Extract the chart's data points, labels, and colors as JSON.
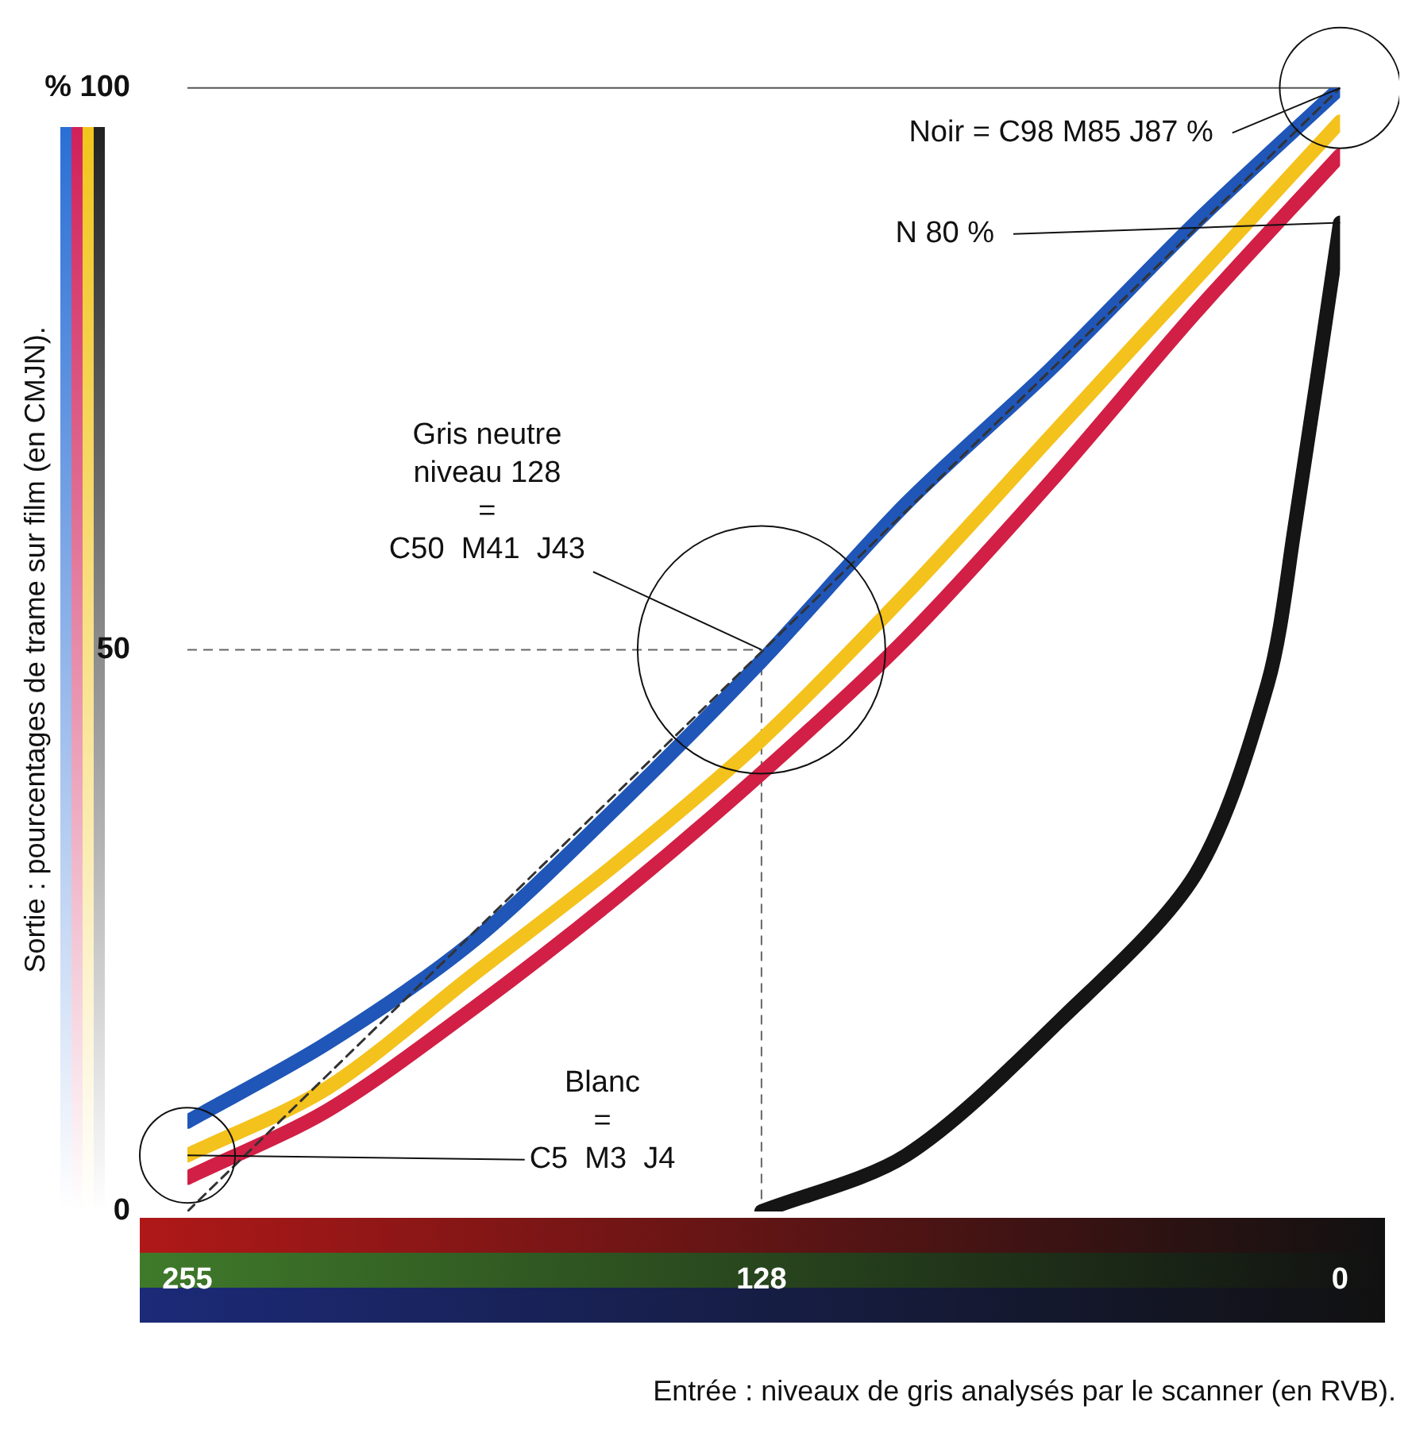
{
  "chart_data": {
    "type": "line",
    "xlabel": "Entrée : niveaux de gris analysés par le scanner (en RVB).",
    "ylabel": "Sortie : pourcentages de trame sur film (en CMJN).",
    "x": [
      255,
      224,
      192,
      160,
      128,
      96,
      64,
      32,
      0
    ],
    "series": [
      {
        "color": "#d21f45",
        "values": [
          3,
          9,
          18,
          28,
          39,
          51,
          65,
          80,
          94
        ]
      },
      {
        "color": "#f4c21c",
        "values": [
          5,
          11,
          21,
          31,
          42,
          55,
          69,
          83,
          97
        ]
      },
      {
        "color": "#1f56b8",
        "values": [
          8,
          15,
          24,
          36,
          49,
          63,
          75,
          88,
          100
        ]
      },
      {
        "color": "#151515",
        "x": [
          128,
          96,
          62,
          32,
          16,
          10,
          0
        ],
        "values": [
          0,
          5,
          17,
          30,
          47,
          61,
          88
        ]
      },
      {
        "color": "#333333",
        "x": [
          255,
          0
        ],
        "values": [
          0,
          100
        ],
        "line_style": "dashed"
      }
    ],
    "xlim": [
      255,
      0
    ],
    "xticks": [
      255,
      128,
      0
    ],
    "ylim": [
      0,
      100
    ],
    "yticks": [
      0,
      50,
      {
        "value": 100,
        "label": "% 100"
      }
    ],
    "ref_lines": [
      {
        "axis": "y",
        "value": 50,
        "line_style": "dashed",
        "color": "#666666"
      },
      {
        "axis": "x",
        "value": 128,
        "line_style": "dashed",
        "color": "#666666"
      }
    ],
    "annotations": [
      {
        "text": "Noir = C98 M85 J87 %",
        "x": 0,
        "y": 100
      },
      {
        "text": "N 80 %",
        "x": 0,
        "y": 88
      },
      {
        "text": "Gris neutre\nniveau 128\n=\nC50  M41  J43",
        "x": 128,
        "y": 50
      },
      {
        "text": "Blanc\n=\nC5  M3  J4",
        "x": 255,
        "y": 5
      }
    ],
    "grid": false,
    "legend": false,
    "marker": "none",
    "line_style": "solid"
  }
}
